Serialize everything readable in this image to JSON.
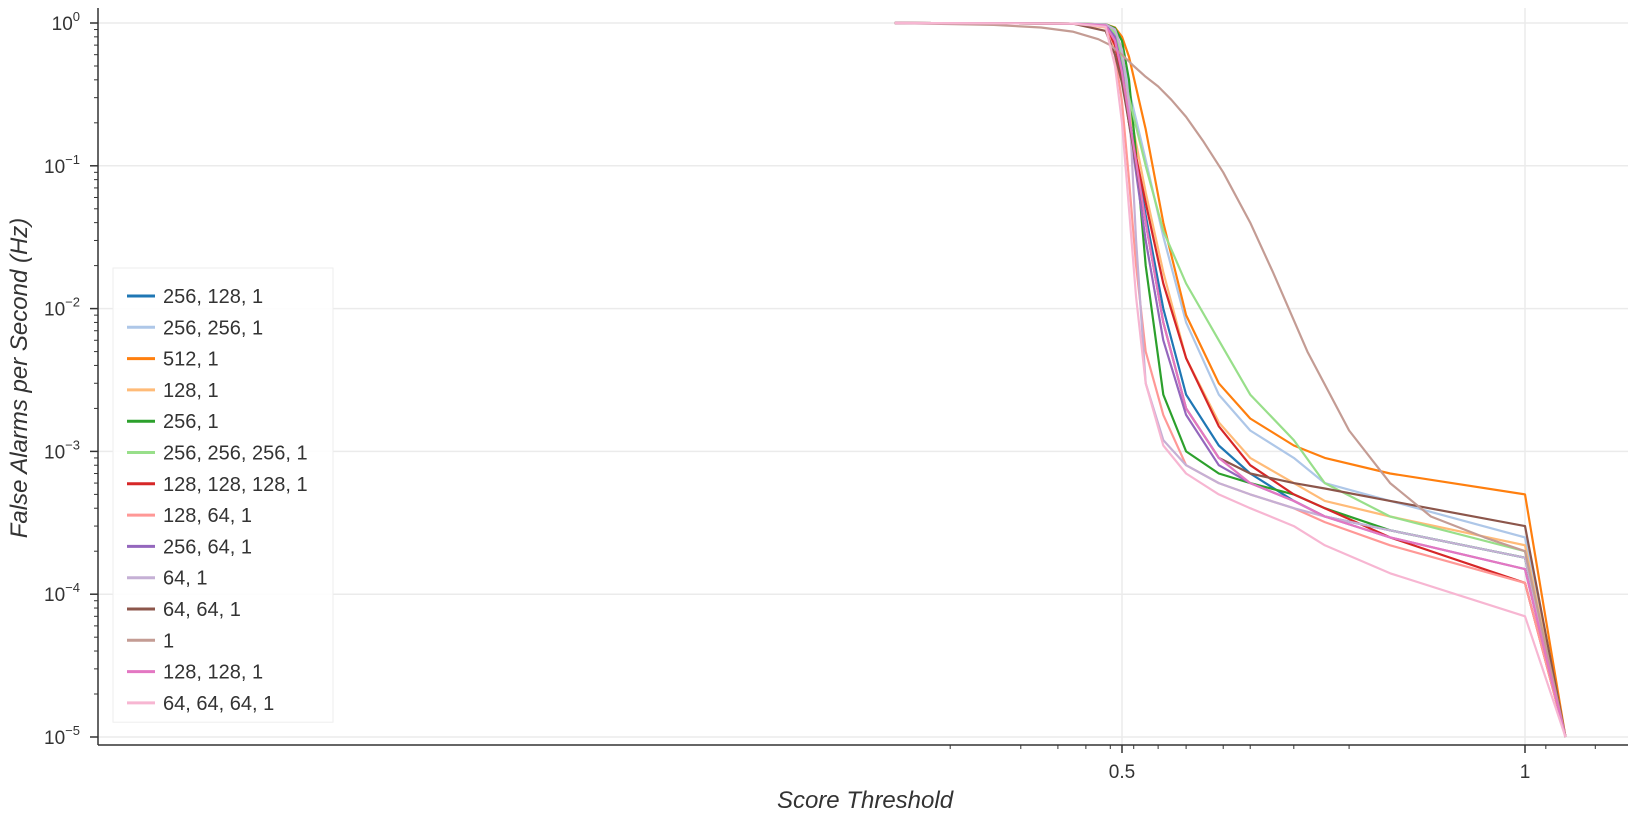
{
  "chart_data": {
    "type": "line",
    "title": "",
    "xlabel": "Score Threshold",
    "ylabel": "False Alarms per Second (Hz)",
    "xscale": "logit",
    "yscale": "log",
    "xlim": [
      0.0,
      0.9995
    ],
    "ylim": [
      1e-05,
      1.0
    ],
    "x_ticks": [
      0.5,
      1.0
    ],
    "x_tick_labels": [
      "0.5",
      "1"
    ],
    "y_tick_labels": [
      {
        "base": "10",
        "exp": "0",
        "value": 1.0
      },
      {
        "base": "10",
        "exp": "−1",
        "value": 0.1
      },
      {
        "base": "10",
        "exp": "−2",
        "value": 0.01
      },
      {
        "base": "10",
        "exp": "−3",
        "value": 0.001
      },
      {
        "base": "10",
        "exp": "−4",
        "value": 0.0001
      },
      {
        "base": "10",
        "exp": "−5",
        "value": 1e-05
      }
    ],
    "grid": true,
    "legend_position": "left",
    "series": [
      {
        "name": "256, 128, 1",
        "color": "#1f77b4",
        "x": [
          0.02,
          0.3,
          0.43,
          0.47,
          0.5,
          0.53,
          0.6,
          0.67,
          0.75,
          0.84,
          0.9,
          0.95,
          0.97,
          0.99,
          0.999,
          0.9995
        ],
        "y": [
          1.0,
          0.99,
          0.97,
          0.82,
          0.5,
          0.22,
          0.045,
          0.01,
          0.0025,
          0.0011,
          0.0007,
          0.00045,
          0.00035,
          0.00028,
          0.00018,
          1e-05
        ]
      },
      {
        "name": "256, 256, 1",
        "color": "#aec7e8",
        "x": [
          0.02,
          0.3,
          0.43,
          0.47,
          0.5,
          0.53,
          0.6,
          0.67,
          0.75,
          0.84,
          0.9,
          0.95,
          0.97,
          0.99,
          0.999,
          0.9995
        ],
        "y": [
          1.0,
          0.99,
          0.98,
          0.88,
          0.6,
          0.34,
          0.11,
          0.032,
          0.008,
          0.0025,
          0.0014,
          0.0009,
          0.0006,
          0.00045,
          0.00025,
          1e-05
        ]
      },
      {
        "name": "512, 1",
        "color": "#ff7f0e",
        "x": [
          0.02,
          0.3,
          0.43,
          0.47,
          0.5,
          0.53,
          0.6,
          0.67,
          0.75,
          0.84,
          0.9,
          0.95,
          0.97,
          0.99,
          0.999,
          0.9995
        ],
        "y": [
          1.0,
          0.99,
          0.98,
          0.93,
          0.8,
          0.58,
          0.18,
          0.04,
          0.009,
          0.003,
          0.0017,
          0.0011,
          0.0009,
          0.0007,
          0.0005,
          1e-05
        ]
      },
      {
        "name": "128, 1",
        "color": "#ffbb78",
        "x": [
          0.02,
          0.3,
          0.43,
          0.47,
          0.5,
          0.53,
          0.6,
          0.67,
          0.75,
          0.84,
          0.9,
          0.95,
          0.97,
          0.99,
          0.999,
          0.9995
        ],
        "y": [
          1.0,
          0.99,
          0.93,
          0.68,
          0.45,
          0.26,
          0.065,
          0.018,
          0.0045,
          0.0016,
          0.0009,
          0.0006,
          0.00045,
          0.00035,
          0.00022,
          1e-05
        ]
      },
      {
        "name": "256, 1",
        "color": "#2ca02c",
        "x": [
          0.02,
          0.3,
          0.43,
          0.47,
          0.5,
          0.53,
          0.56,
          0.6,
          0.67,
          0.75,
          0.84,
          0.9,
          0.95,
          0.97,
          0.99,
          0.999,
          0.9995
        ],
        "y": [
          1.0,
          0.99,
          0.98,
          0.92,
          0.75,
          0.4,
          0.12,
          0.02,
          0.0025,
          0.001,
          0.0007,
          0.0006,
          0.0005,
          0.0004,
          0.00028,
          0.00018,
          1e-05
        ]
      },
      {
        "name": "256, 256, 256, 1",
        "color": "#98df8a",
        "x": [
          0.02,
          0.3,
          0.43,
          0.47,
          0.5,
          0.53,
          0.6,
          0.67,
          0.75,
          0.84,
          0.9,
          0.95,
          0.97,
          0.99,
          0.999,
          0.9995
        ],
        "y": [
          1.0,
          0.99,
          0.98,
          0.85,
          0.55,
          0.3,
          0.1,
          0.035,
          0.015,
          0.006,
          0.0025,
          0.0012,
          0.0006,
          0.00035,
          0.0002,
          1e-05
        ]
      },
      {
        "name": "128, 128, 128, 1",
        "color": "#d62728",
        "x": [
          0.02,
          0.3,
          0.43,
          0.47,
          0.5,
          0.53,
          0.6,
          0.67,
          0.75,
          0.84,
          0.9,
          0.95,
          0.97,
          0.99,
          0.999,
          0.9995
        ],
        "y": [
          1.0,
          0.99,
          0.95,
          0.7,
          0.42,
          0.2,
          0.055,
          0.015,
          0.0045,
          0.0015,
          0.0008,
          0.0005,
          0.0004,
          0.00025,
          0.00012,
          1e-05
        ]
      },
      {
        "name": "128, 64, 1",
        "color": "#ff9896",
        "x": [
          0.02,
          0.3,
          0.43,
          0.47,
          0.5,
          0.53,
          0.56,
          0.6,
          0.67,
          0.75,
          0.84,
          0.9,
          0.95,
          0.97,
          0.99,
          0.999,
          0.9995
        ],
        "y": [
          1.0,
          0.99,
          0.95,
          0.6,
          0.28,
          0.08,
          0.02,
          0.005,
          0.0018,
          0.0008,
          0.0006,
          0.0005,
          0.0004,
          0.00032,
          0.00022,
          0.00012,
          1e-05
        ]
      },
      {
        "name": "256, 64, 1",
        "color": "#9467bd",
        "x": [
          0.02,
          0.3,
          0.43,
          0.47,
          0.5,
          0.53,
          0.6,
          0.67,
          0.75,
          0.84,
          0.9,
          0.95,
          0.97,
          0.99,
          0.999,
          0.9995
        ],
        "y": [
          1.0,
          0.99,
          0.97,
          0.8,
          0.48,
          0.2,
          0.03,
          0.006,
          0.0018,
          0.0008,
          0.0006,
          0.00045,
          0.00035,
          0.00025,
          0.00015,
          1e-05
        ]
      },
      {
        "name": "64, 1",
        "color": "#c5b0d5",
        "x": [
          0.02,
          0.3,
          0.43,
          0.47,
          0.5,
          0.53,
          0.56,
          0.6,
          0.67,
          0.75,
          0.84,
          0.9,
          0.95,
          0.97,
          0.99,
          0.999,
          0.9995
        ],
        "y": [
          1.0,
          0.99,
          0.98,
          0.9,
          0.65,
          0.28,
          0.03,
          0.003,
          0.0012,
          0.0008,
          0.0006,
          0.0005,
          0.0004,
          0.00035,
          0.00028,
          0.00018,
          1e-05
        ]
      },
      {
        "name": "64, 64, 1",
        "color": "#8c564b",
        "x": [
          0.02,
          0.3,
          0.43,
          0.47,
          0.5,
          0.53,
          0.6,
          0.67,
          0.75,
          0.84,
          0.9,
          0.95,
          0.97,
          0.99,
          0.999,
          0.9995
        ],
        "y": [
          1.0,
          0.99,
          0.88,
          0.6,
          0.38,
          0.2,
          0.04,
          0.008,
          0.002,
          0.0009,
          0.0007,
          0.0006,
          0.00055,
          0.00045,
          0.0003,
          1e-05
        ]
      },
      {
        "name": "1",
        "color": "#c49c94",
        "x": [
          0.02,
          0.1,
          0.2,
          0.3,
          0.4,
          0.45,
          0.5,
          0.55,
          0.6,
          0.65,
          0.7,
          0.75,
          0.8,
          0.85,
          0.9,
          0.93,
          0.96,
          0.98,
          0.99,
          0.995,
          0.998,
          0.999,
          0.9995
        ],
        "y": [
          1.0,
          0.97,
          0.93,
          0.87,
          0.77,
          0.7,
          0.6,
          0.5,
          0.42,
          0.36,
          0.29,
          0.22,
          0.15,
          0.09,
          0.04,
          0.018,
          0.005,
          0.0014,
          0.0006,
          0.00035,
          0.00025,
          0.0002,
          1e-05
        ]
      },
      {
        "name": "128, 128, 1",
        "color": "#e377c2",
        "x": [
          0.02,
          0.3,
          0.43,
          0.47,
          0.5,
          0.53,
          0.6,
          0.67,
          0.75,
          0.84,
          0.9,
          0.95,
          0.97,
          0.99,
          0.999,
          0.9995
        ],
        "y": [
          1.0,
          0.99,
          0.96,
          0.75,
          0.45,
          0.22,
          0.04,
          0.008,
          0.002,
          0.0009,
          0.0006,
          0.00045,
          0.00035,
          0.00025,
          0.00015,
          1e-05
        ]
      },
      {
        "name": "64, 64, 64, 1",
        "color": "#f7b6d2",
        "x": [
          0.02,
          0.3,
          0.43,
          0.47,
          0.5,
          0.53,
          0.56,
          0.6,
          0.67,
          0.75,
          0.84,
          0.9,
          0.95,
          0.97,
          0.99,
          0.999,
          0.9995
        ],
        "y": [
          1.0,
          0.99,
          0.94,
          0.5,
          0.2,
          0.05,
          0.012,
          0.003,
          0.0011,
          0.0007,
          0.0005,
          0.0004,
          0.0003,
          0.00022,
          0.00014,
          7e-05,
          1e-05
        ]
      }
    ]
  }
}
